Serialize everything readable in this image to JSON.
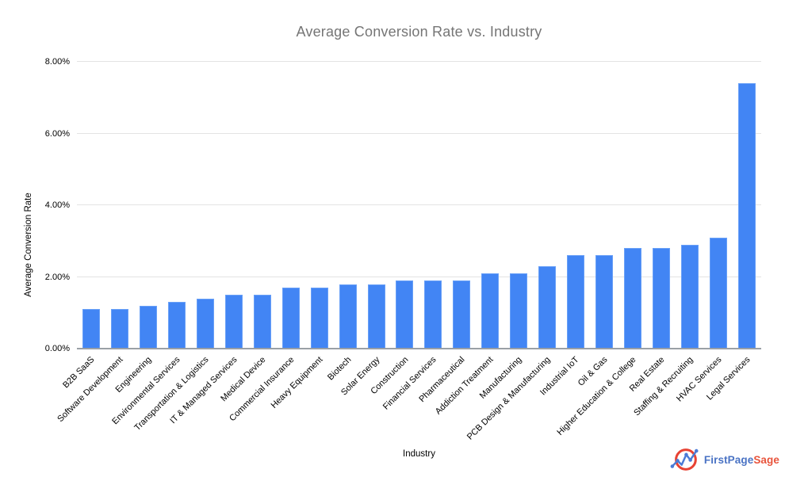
{
  "chart_data": {
    "type": "bar",
    "title": "Average Conversion Rate vs. Industry",
    "xlabel": "Industry",
    "ylabel": "Average Conversion Rate",
    "ylim": [
      0,
      8
    ],
    "y_tick_labels": [
      "0.00%",
      "2.00%",
      "4.00%",
      "6.00%",
      "8.00%"
    ],
    "grid": true,
    "legend": "none",
    "categories": [
      "B2B SaaS",
      "Software Development",
      "Engineering",
      "Environmental Services",
      "Transportation & Logistics",
      "IT & Managed Services",
      "Medical Device",
      "Commercial Insurance",
      "Heavy Equipment",
      "Biotech",
      "Solar Energy",
      "Construction",
      "Financial Services",
      "Pharmaceutical",
      "Addiction Treatment",
      "Manufacturing",
      "PCB Design & Manufacturing",
      "Industrial IoT",
      "Oil & Gas",
      "Higher Education & College",
      "Real Estate",
      "Staffing & Recruiting",
      "HVAC Services",
      "Legal Services"
    ],
    "values": [
      1.1,
      1.1,
      1.2,
      1.3,
      1.4,
      1.5,
      1.5,
      1.7,
      1.7,
      1.8,
      1.8,
      1.9,
      1.9,
      1.9,
      2.1,
      2.1,
      2.3,
      2.6,
      2.6,
      2.8,
      2.8,
      2.9,
      3.1,
      7.4
    ],
    "colors": {
      "bar": "#4285f4",
      "bar_edge": "#69a0f7",
      "grid": "#e3e3e3",
      "baseline": "#9aa0a6",
      "title": "#757575",
      "labels": "#000000"
    }
  },
  "branding": {
    "logo_primary": "FirstPage",
    "logo_secondary": "Sage",
    "logo_primary_color": "#4a73c4",
    "logo_secondary_color": "#e8543c",
    "logo_icon": "line-chart-in-red-circle"
  }
}
